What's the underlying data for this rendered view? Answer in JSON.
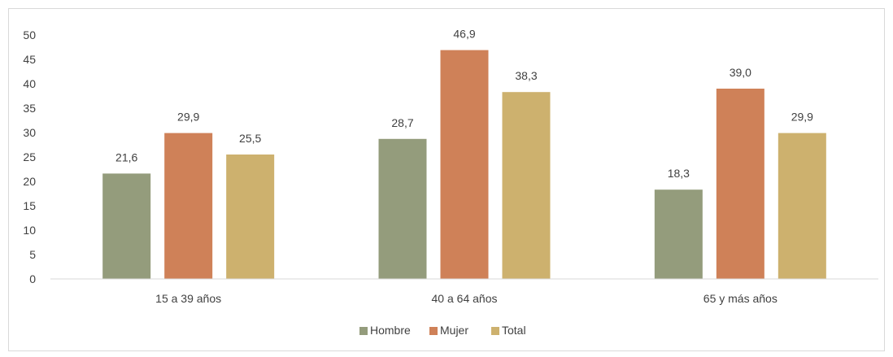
{
  "chart_data": {
    "type": "bar",
    "title": "",
    "xlabel": "",
    "ylabel": "",
    "categories": [
      "15 a 39 años",
      "40 a 64 años",
      "65 y más años"
    ],
    "series": [
      {
        "name": "Hombre",
        "color": "#949c7c",
        "values": [
          21.6,
          28.7,
          18.3
        ],
        "labels": [
          "21,6",
          "28,7",
          "18,3"
        ]
      },
      {
        "name": "Mujer",
        "color": "#cf8158",
        "values": [
          29.9,
          46.9,
          39.0
        ],
        "labels": [
          "29,9",
          "46,9",
          "39,0"
        ]
      },
      {
        "name": "Total",
        "color": "#cdb16e",
        "values": [
          25.5,
          38.3,
          29.9
        ],
        "labels": [
          "25,5",
          "38,3",
          "29,9"
        ]
      }
    ],
    "ylim": [
      0,
      50
    ],
    "yticks": [
      0,
      5,
      10,
      15,
      20,
      25,
      30,
      35,
      40,
      45,
      50
    ],
    "grid": false,
    "legend_position": "bottom"
  }
}
